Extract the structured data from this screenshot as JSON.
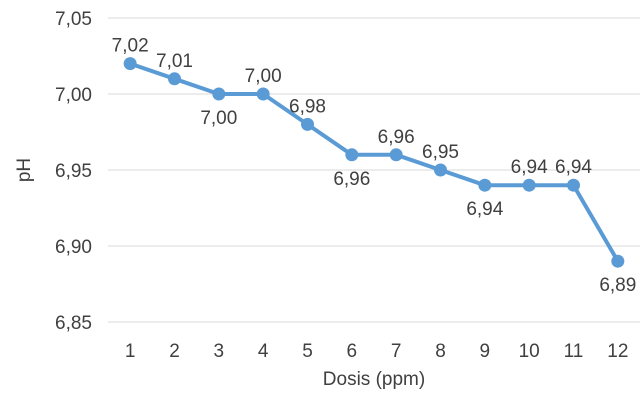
{
  "chart_data": {
    "type": "line",
    "title": "",
    "xlabel": "Dosis (ppm)",
    "ylabel": "pH",
    "categories": [
      "1",
      "2",
      "3",
      "4",
      "5",
      "6",
      "7",
      "8",
      "9",
      "10",
      "11",
      "12"
    ],
    "values": [
      7.02,
      7.01,
      7.0,
      7.0,
      6.98,
      6.96,
      6.96,
      6.95,
      6.94,
      6.94,
      6.94,
      6.89
    ],
    "data_labels": [
      "7,02",
      "7,01",
      "7,00",
      "7,00",
      "6,98",
      "6,96",
      "6,96",
      "6,95",
      "6,94",
      "6,94",
      "6,94",
      "6,89"
    ],
    "data_label_position": [
      "above",
      "above",
      "below",
      "above",
      "above",
      "below",
      "above",
      "above",
      "below",
      "above",
      "above",
      "below"
    ],
    "ylim": [
      6.85,
      7.05
    ],
    "yticks": [
      6.85,
      6.9,
      6.95,
      7.0,
      7.05
    ],
    "ytick_labels": [
      "6,85",
      "6,90",
      "6,95",
      "7,00",
      "7,05"
    ],
    "grid": true,
    "legend": "none",
    "series_color": "#5b9bd5"
  }
}
